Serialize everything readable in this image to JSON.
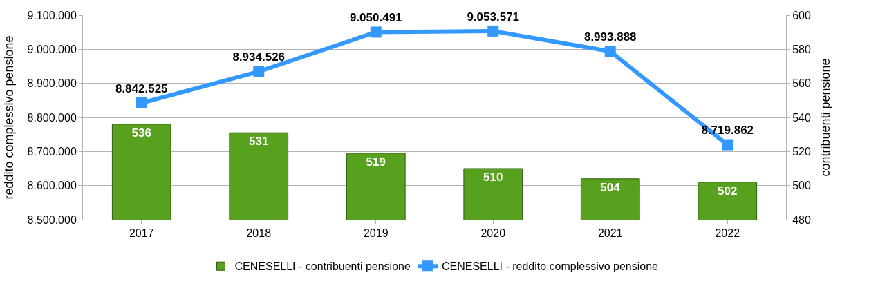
{
  "chart_data": {
    "type": "bar",
    "categories": [
      "2017",
      "2018",
      "2019",
      "2020",
      "2021",
      "2022"
    ],
    "ylabel": "reddito complessivo pensione",
    "y2label": "contribuenti pensione",
    "ylim": [
      8500000,
      9100000
    ],
    "yticks": [
      {
        "value": 8500000,
        "label": "8.500.000"
      },
      {
        "value": 8600000,
        "label": "8.600.000"
      },
      {
        "value": 8700000,
        "label": "8.700.000"
      },
      {
        "value": 8800000,
        "label": "8.800.000"
      },
      {
        "value": 8900000,
        "label": "8.900.000"
      },
      {
        "value": 9000000,
        "label": "9.000.000"
      },
      {
        "value": 9100000,
        "label": "9.100.000"
      }
    ],
    "y2lim": [
      480,
      600
    ],
    "y2ticks": [
      480,
      500,
      520,
      540,
      560,
      580,
      600
    ],
    "grid": "y",
    "legend": "bottom",
    "series": [
      {
        "name": "CENESELLI - contribuenti pensione",
        "axis": "y2",
        "color": "#58a11e",
        "values": [
          536,
          531,
          519,
          510,
          504,
          502
        ],
        "value_labels": [
          "536",
          "531",
          "519",
          "510",
          "504",
          "502"
        ]
      },
      {
        "name": "CENESELLI - reddito complessivo pensione",
        "type": "line",
        "color": "#3399ff",
        "marker": "square",
        "line_style": "solid",
        "values": [
          8842525,
          8934526,
          9050491,
          9053571,
          8993888,
          8719862
        ],
        "value_labels": [
          "8.842.525",
          "8.934.526",
          "9.050.491",
          "9.053.571",
          "8.993.888",
          "8.719.862"
        ]
      }
    ]
  }
}
